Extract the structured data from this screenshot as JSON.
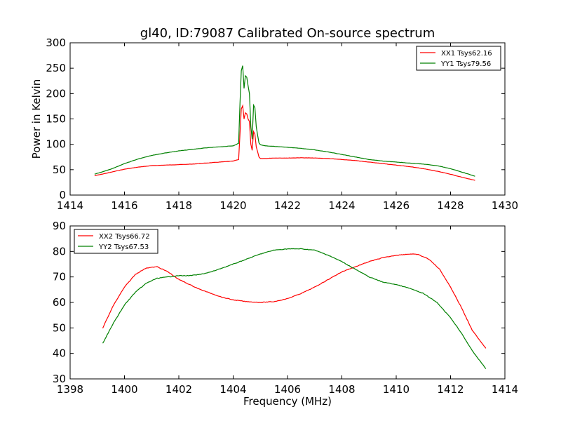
{
  "title": "gl40, ID:79087 Calibrated On-source spectrum",
  "chart_data": [
    {
      "type": "line",
      "title": "gl40, ID:79087 Calibrated On-source spectrum",
      "xlabel": "",
      "ylabel": "Power in Kelvin",
      "xlim": [
        1414,
        1430
      ],
      "ylim": [
        0,
        300
      ],
      "xticks": [
        1414,
        1416,
        1418,
        1420,
        1422,
        1424,
        1426,
        1428,
        1430
      ],
      "yticks": [
        0,
        50,
        100,
        150,
        200,
        250,
        300
      ],
      "legend_position": "top-right",
      "grid": false,
      "series": [
        {
          "name": "XX1 Tsys62.16",
          "color": "#ff0000",
          "x": [
            1414.9,
            1415.5,
            1416.0,
            1416.5,
            1417.0,
            1417.5,
            1418.0,
            1418.5,
            1419.0,
            1419.5,
            1420.0,
            1420.2,
            1420.25,
            1420.3,
            1420.35,
            1420.4,
            1420.45,
            1420.5,
            1420.55,
            1420.6,
            1420.65,
            1420.7,
            1420.75,
            1420.8,
            1420.85,
            1420.9,
            1420.95,
            1421.0,
            1421.2,
            1421.5,
            1422.0,
            1422.5,
            1423.0,
            1423.5,
            1424.0,
            1424.5,
            1425.0,
            1425.5,
            1426.0,
            1426.5,
            1427.0,
            1427.5,
            1428.0,
            1428.5,
            1428.9
          ],
          "y": [
            38,
            45,
            51,
            55,
            58,
            59,
            60,
            61,
            63,
            65,
            67,
            70,
            120,
            170,
            176,
            150,
            162,
            160,
            150,
            145,
            100,
            88,
            125,
            120,
            95,
            85,
            75,
            72,
            72,
            73,
            73,
            73.5,
            73,
            72,
            70,
            68,
            65,
            62,
            59,
            56,
            52,
            47,
            41,
            34,
            29
          ]
        },
        {
          "name": "YY1 Tsys79.56",
          "color": "#008000",
          "x": [
            1414.9,
            1415.5,
            1416.0,
            1416.5,
            1417.0,
            1417.5,
            1418.0,
            1418.5,
            1419.0,
            1419.5,
            1420.0,
            1420.2,
            1420.25,
            1420.3,
            1420.35,
            1420.4,
            1420.45,
            1420.5,
            1420.55,
            1420.6,
            1420.65,
            1420.7,
            1420.75,
            1420.8,
            1420.85,
            1420.9,
            1420.95,
            1421.0,
            1421.2,
            1421.5,
            1422.0,
            1422.5,
            1423.0,
            1423.5,
            1424.0,
            1424.5,
            1425.0,
            1425.5,
            1426.0,
            1426.5,
            1427.0,
            1427.5,
            1428.0,
            1428.5,
            1428.9
          ],
          "y": [
            41,
            51,
            62,
            71,
            78,
            83,
            87,
            90,
            93,
            95,
            97,
            102,
            180,
            245,
            255,
            210,
            235,
            232,
            215,
            200,
            135,
            110,
            177,
            172,
            135,
            118,
            103,
            99,
            97,
            96,
            94,
            92,
            89,
            85,
            80,
            75,
            70,
            67,
            65,
            63,
            61,
            58,
            52,
            44,
            37
          ]
        }
      ]
    },
    {
      "type": "line",
      "title": "",
      "xlabel": "Frequency (MHz)",
      "ylabel": "",
      "xlim": [
        1398,
        1414
      ],
      "ylim": [
        30,
        90
      ],
      "xticks": [
        1398,
        1400,
        1402,
        1404,
        1406,
        1408,
        1410,
        1412,
        1414
      ],
      "yticks": [
        30,
        40,
        50,
        60,
        70,
        80,
        90
      ],
      "legend_position": "top-left",
      "grid": false,
      "series": [
        {
          "name": "XX2 Tsys66.72",
          "color": "#ff0000",
          "x": [
            1399.2,
            1399.6,
            1400.0,
            1400.4,
            1400.8,
            1401.2,
            1401.6,
            1402.0,
            1402.4,
            1402.8,
            1403.2,
            1403.6,
            1404.0,
            1404.5,
            1405.0,
            1405.5,
            1406.0,
            1406.5,
            1407.0,
            1407.5,
            1408.0,
            1408.5,
            1409.0,
            1409.5,
            1410.0,
            1410.5,
            1410.8,
            1411.2,
            1411.6,
            1412.0,
            1412.4,
            1412.8,
            1413.3
          ],
          "y": [
            50,
            59,
            66,
            71,
            73.5,
            74,
            72,
            69,
            67,
            65,
            63.5,
            62,
            61,
            60.3,
            60,
            60.3,
            61.5,
            63.5,
            66,
            69,
            72,
            74,
            76,
            77.5,
            78.5,
            79,
            78.8,
            77,
            73,
            66,
            58,
            49,
            42
          ]
        },
        {
          "name": "YY2 Tsys67.53",
          "color": "#008000",
          "x": [
            1399.2,
            1399.6,
            1400.0,
            1400.4,
            1400.8,
            1401.2,
            1401.6,
            1402.0,
            1402.4,
            1402.8,
            1403.2,
            1403.6,
            1404.0,
            1404.5,
            1405.0,
            1405.5,
            1406.0,
            1406.5,
            1407.0,
            1407.5,
            1408.0,
            1408.5,
            1409.0,
            1409.5,
            1410.0,
            1410.5,
            1411.0,
            1411.5,
            1412.0,
            1412.4,
            1412.8,
            1413.3
          ],
          "y": [
            44,
            52,
            59,
            64,
            67.5,
            69.5,
            70,
            70.5,
            70.5,
            71,
            72,
            73.5,
            75,
            77,
            79,
            80.5,
            81,
            81,
            80.5,
            78.5,
            76,
            73,
            70,
            68,
            67,
            65.5,
            63.5,
            60,
            54,
            48,
            41,
            34
          ]
        }
      ]
    }
  ]
}
